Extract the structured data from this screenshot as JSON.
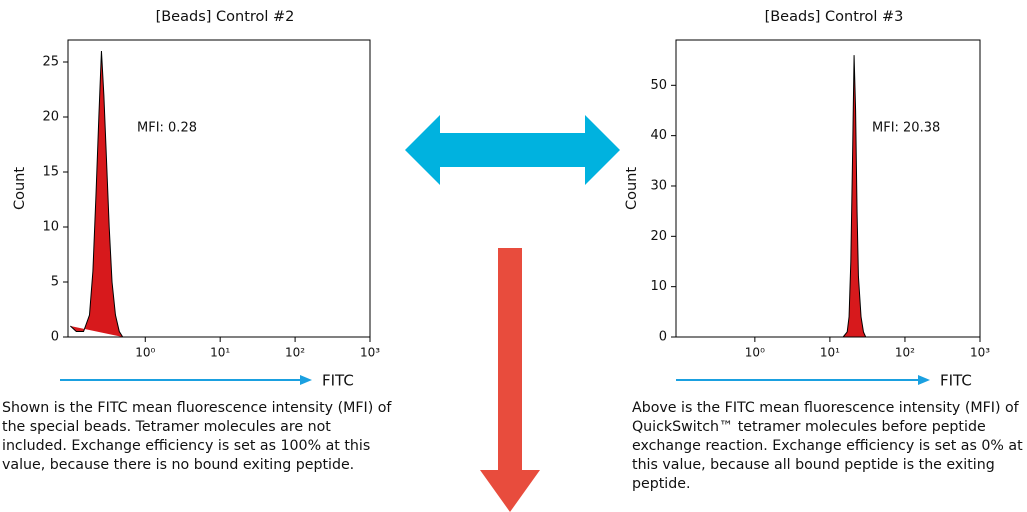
{
  "chart_data": [
    {
      "type": "histogram",
      "title": "[Beads] Control #2",
      "ylabel": "Count",
      "xlabel": "FITC",
      "annotation": "MFI: 0.28",
      "caption": "Shown is the FITC mean fluorescence intensity (MFI) of the special beads. Tetramer molecules are not included. Exchange efficiency is set as 100% at this value, because there is no bound exiting peptide.",
      "xscale": "log",
      "xlim": [
        0.093,
        1000
      ],
      "xticks": [
        {
          "value": 1,
          "label": "10⁰"
        },
        {
          "value": 10,
          "label": "10¹"
        },
        {
          "value": 100,
          "label": "10²"
        },
        {
          "value": 1000,
          "label": "10³"
        }
      ],
      "ylim": [
        0,
        27
      ],
      "yticks": [
        0,
        5,
        10,
        15,
        20,
        25
      ],
      "color": "#d7191c",
      "x": [
        0.1,
        0.12,
        0.15,
        0.18,
        0.2,
        0.22,
        0.24,
        0.26,
        0.28,
        0.3,
        0.33,
        0.36,
        0.4,
        0.45,
        0.5
      ],
      "values": [
        1,
        0.5,
        0.5,
        2,
        6,
        13,
        20,
        26,
        22,
        17,
        10,
        5,
        2,
        0.5,
        0
      ]
    },
    {
      "type": "histogram",
      "title": "[Beads] Control #3",
      "ylabel": "Count",
      "xlabel": "FITC",
      "annotation": "MFI: 20.38",
      "caption": "Above is the FITC mean fluorescence intensity (MFI) of QuickSwitch™ tetramer molecules before peptide exchange reaction. Exchange efficiency is set as 0% at this value, because all bound peptide is the exiting peptide.",
      "xscale": "log",
      "xlim": [
        0.089,
        1000
      ],
      "xticks": [
        {
          "value": 1,
          "label": "10⁰"
        },
        {
          "value": 10,
          "label": "10¹"
        },
        {
          "value": 100,
          "label": "10²"
        },
        {
          "value": 1000,
          "label": "10³"
        }
      ],
      "ylim": [
        0,
        59
      ],
      "yticks": [
        0,
        10,
        20,
        30,
        40,
        50
      ],
      "color": "#d7191c",
      "x": [
        15,
        17,
        18,
        19,
        20,
        21,
        22,
        23,
        24,
        26,
        28,
        30
      ],
      "values": [
        0,
        1,
        4,
        15,
        35,
        56,
        45,
        25,
        12,
        4,
        1,
        0
      ]
    }
  ]
}
